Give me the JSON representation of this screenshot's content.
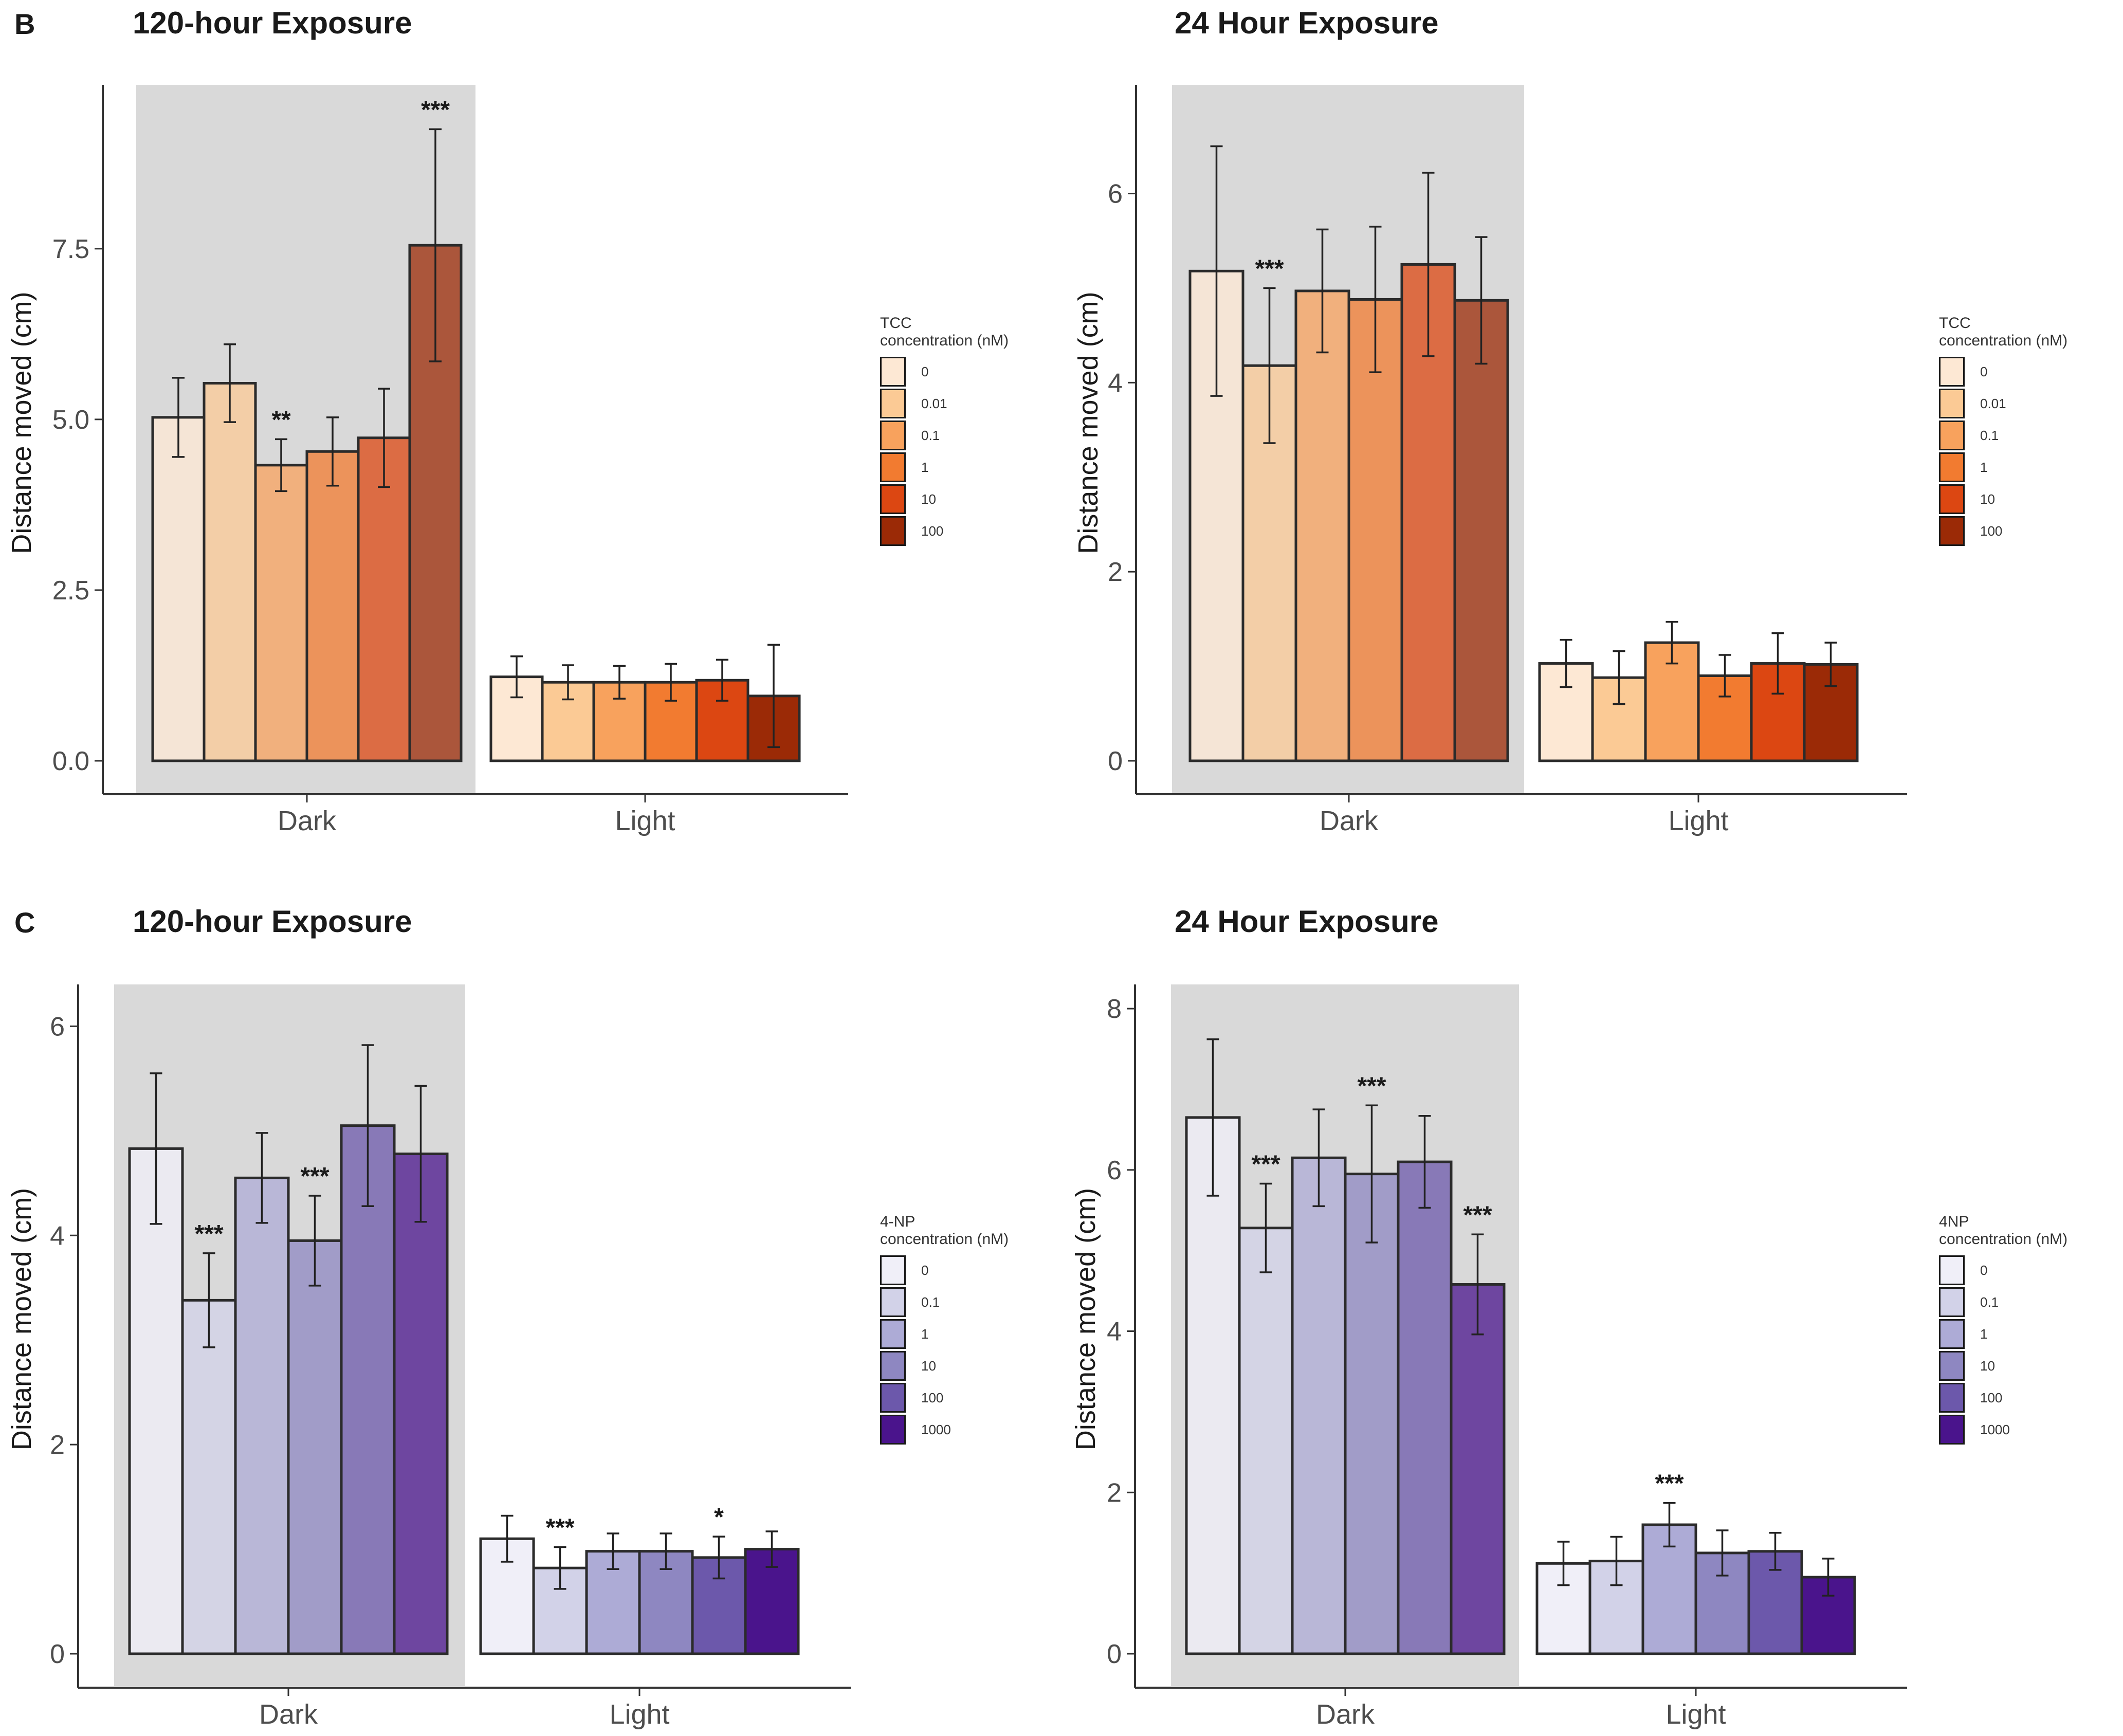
{
  "panels": {
    "B": {
      "letter": "B"
    },
    "C": {
      "letter": "C"
    }
  },
  "colors": {
    "tcc": [
      "#fde8d4",
      "#fbca95",
      "#f8a25d",
      "#f27b30",
      "#dc4712",
      "#9b2a06"
    ],
    "np": [
      "#f0eff8",
      "#d2d2e8",
      "#adabd6",
      "#8e87c1",
      "#6c58ab",
      "#4a148c"
    ],
    "panel_bg": "#d9d9d9",
    "dark_alpha": 0.75
  },
  "chart_data": [
    {
      "id": "B-120h",
      "type": "bar",
      "title": "120-hour Exposure",
      "xlabel": "",
      "ylabel": "Distance moved (cm)",
      "ylim": [
        0,
        9.9
      ],
      "yticks": [
        "0.0",
        "2.5",
        "5.0",
        "7.5"
      ],
      "ytick_values": [
        0,
        2.5,
        5.0,
        7.5
      ],
      "categories": [
        "Dark",
        "Light"
      ],
      "shaded_category": "Dark",
      "legend": {
        "title_lines": [
          "TCC",
          "concentration (nM)"
        ],
        "entries": [
          "0",
          "0.01",
          "0.1",
          "1",
          "10",
          "100"
        ]
      },
      "palette": "tcc",
      "series": [
        {
          "name": "0",
          "values": [
            5.03,
            1.23
          ],
          "err": [
            0.58,
            0.3
          ],
          "sig": [
            "",
            ""
          ]
        },
        {
          "name": "0.01",
          "values": [
            5.53,
            1.15
          ],
          "err": [
            0.57,
            0.25
          ],
          "sig": [
            "",
            ""
          ]
        },
        {
          "name": "0.1",
          "values": [
            4.33,
            1.15
          ],
          "err": [
            0.38,
            0.24
          ],
          "sig": [
            "**",
            ""
          ]
        },
        {
          "name": "1",
          "values": [
            4.53,
            1.15
          ],
          "err": [
            0.5,
            0.27
          ],
          "sig": [
            "",
            ""
          ]
        },
        {
          "name": "10",
          "values": [
            4.73,
            1.18
          ],
          "err": [
            0.72,
            0.3
          ],
          "sig": [
            "",
            ""
          ]
        },
        {
          "name": "100",
          "values": [
            7.55,
            0.95
          ],
          "err": [
            1.7,
            0.75
          ],
          "sig": [
            "***",
            ""
          ]
        }
      ]
    },
    {
      "id": "B-24h",
      "type": "bar",
      "title": "24 Hour Exposure",
      "xlabel": "",
      "ylabel": "Distance moved (cm)",
      "ylim": [
        0,
        7.15
      ],
      "yticks": [
        "0",
        "2",
        "4",
        "6"
      ],
      "ytick_values": [
        0,
        2,
        4,
        6
      ],
      "categories": [
        "Dark",
        "Light"
      ],
      "shaded_category": "Dark",
      "legend": {
        "title_lines": [
          "TCC",
          "concentration (nM)"
        ],
        "entries": [
          "0",
          "0.01",
          "0.1",
          "1",
          "10",
          "100"
        ]
      },
      "palette": "tcc",
      "series": [
        {
          "name": "0",
          "values": [
            5.18,
            1.03
          ],
          "err": [
            1.32,
            0.25
          ],
          "sig": [
            "",
            ""
          ]
        },
        {
          "name": "0.01",
          "values": [
            4.18,
            0.88
          ],
          "err": [
            0.82,
            0.28
          ],
          "sig": [
            "***",
            ""
          ]
        },
        {
          "name": "0.1",
          "values": [
            4.97,
            1.25
          ],
          "err": [
            0.65,
            0.22
          ],
          "sig": [
            "",
            ""
          ]
        },
        {
          "name": "1",
          "values": [
            4.88,
            0.9
          ],
          "err": [
            0.77,
            0.22
          ],
          "sig": [
            "",
            ""
          ]
        },
        {
          "name": "10",
          "values": [
            5.25,
            1.03
          ],
          "err": [
            0.97,
            0.32
          ],
          "sig": [
            "",
            ""
          ]
        },
        {
          "name": "100",
          "values": [
            4.87,
            1.02
          ],
          "err": [
            0.67,
            0.23
          ],
          "sig": [
            "",
            ""
          ]
        }
      ]
    },
    {
      "id": "C-120h",
      "type": "bar",
      "title": "120-hour Exposure",
      "xlabel": "",
      "ylabel": "Distance moved (cm)",
      "ylim": [
        0,
        6.4
      ],
      "yticks": [
        "0",
        "2",
        "4",
        "6"
      ],
      "ytick_values": [
        0,
        2,
        4,
        6
      ],
      "categories": [
        "Dark",
        "Light"
      ],
      "shaded_category": "Dark",
      "legend": {
        "title_lines": [
          "4-NP",
          "concentration (nM)"
        ],
        "entries": [
          "0",
          "0.1",
          "1",
          "10",
          "100",
          "1000"
        ]
      },
      "palette": "np",
      "series": [
        {
          "name": "0",
          "values": [
            4.83,
            1.1
          ],
          "err": [
            0.72,
            0.22
          ],
          "sig": [
            "",
            ""
          ]
        },
        {
          "name": "0.1",
          "values": [
            3.38,
            0.82
          ],
          "err": [
            0.45,
            0.2
          ],
          "sig": [
            "***",
            "***"
          ]
        },
        {
          "name": "1",
          "values": [
            4.55,
            0.98
          ],
          "err": [
            0.43,
            0.17
          ],
          "sig": [
            "",
            ""
          ]
        },
        {
          "name": "10",
          "values": [
            3.95,
            0.98
          ],
          "err": [
            0.43,
            0.17
          ],
          "sig": [
            "***",
            ""
          ]
        },
        {
          "name": "100",
          "values": [
            5.05,
            0.92
          ],
          "err": [
            0.77,
            0.2
          ],
          "sig": [
            "",
            "*"
          ]
        },
        {
          "name": "1000",
          "values": [
            4.78,
            1.0
          ],
          "err": [
            0.65,
            0.17
          ],
          "sig": [
            "",
            ""
          ]
        }
      ]
    },
    {
      "id": "C-24h",
      "type": "bar",
      "title": "24 Hour Exposure",
      "xlabel": "",
      "ylabel": "Distance moved (cm)",
      "ylim": [
        0,
        8.3
      ],
      "yticks": [
        "0",
        "2",
        "4",
        "6",
        "8"
      ],
      "ytick_values": [
        0,
        2,
        4,
        6,
        8
      ],
      "categories": [
        "Dark",
        "Light"
      ],
      "shaded_category": "Dark",
      "legend": {
        "title_lines": [
          "4NP",
          "concentration (nM)"
        ],
        "entries": [
          "0",
          "0.1",
          "1",
          "10",
          "100",
          "1000"
        ]
      },
      "palette": "np",
      "series": [
        {
          "name": "0",
          "values": [
            6.65,
            1.12
          ],
          "err": [
            0.97,
            0.27
          ],
          "sig": [
            "",
            ""
          ]
        },
        {
          "name": "0.1",
          "values": [
            5.28,
            1.15
          ],
          "err": [
            0.55,
            0.3
          ],
          "sig": [
            "***",
            ""
          ]
        },
        {
          "name": "1",
          "values": [
            6.15,
            1.6
          ],
          "err": [
            0.6,
            0.27
          ],
          "sig": [
            "",
            "***"
          ]
        },
        {
          "name": "10",
          "values": [
            5.95,
            1.25
          ],
          "err": [
            0.85,
            0.28
          ],
          "sig": [
            "***",
            ""
          ]
        },
        {
          "name": "100",
          "values": [
            6.1,
            1.27
          ],
          "err": [
            0.57,
            0.23
          ],
          "sig": [
            "",
            ""
          ]
        },
        {
          "name": "1000",
          "values": [
            4.58,
            0.95
          ],
          "err": [
            0.62,
            0.23
          ],
          "sig": [
            "***",
            ""
          ]
        }
      ]
    }
  ]
}
